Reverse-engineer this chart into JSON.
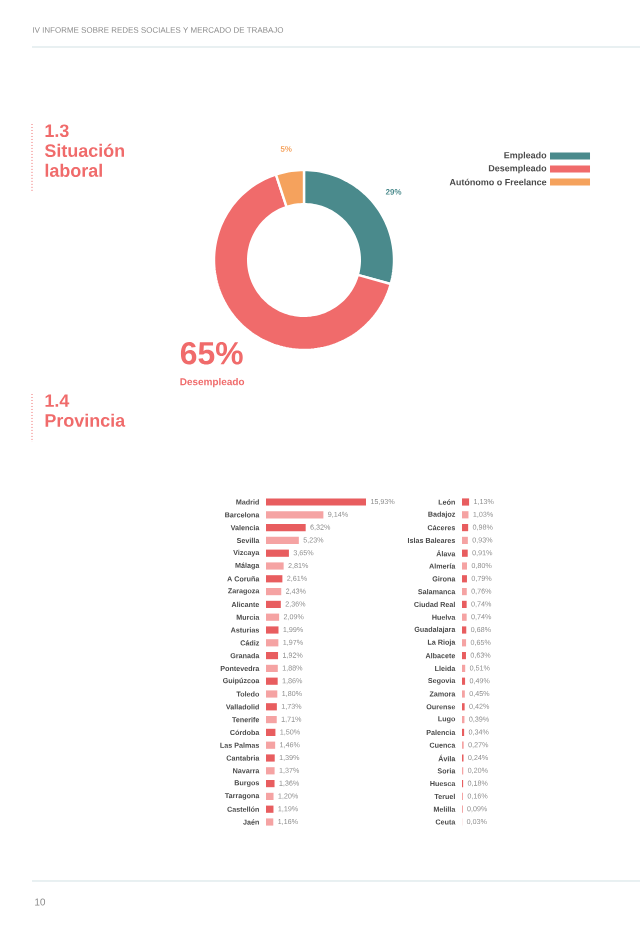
{
  "chart_data": [
    {
      "type": "donut",
      "title": "1.3 Situación laboral",
      "annotations": [
        "IV INFORME SOBRE REDES SOCIALES Y MERCADO DE TRABAJO",
        "10"
      ],
      "categories": [
        "Empleado",
        "Desempleado",
        "Autónomo o Freelance"
      ],
      "values": [
        29,
        65,
        5
      ],
      "colors": [
        "#4a8a8c",
        "#f06b6b",
        "#f5a25d"
      ],
      "value_labels": [
        "29%",
        "65%",
        "5%"
      ],
      "legend": "top right"
    },
    {
      "type": "bar",
      "orientation": "horizontal",
      "title": "1.4 Provincia",
      "categories": [
        "Madrid",
        "Barcelona",
        "Valencia",
        "Sevilla",
        "Vizcaya",
        "Málaga",
        "A Coruña",
        "Zaragoza",
        "Alicante",
        "Murcia",
        "Asturias",
        "Cádiz",
        "Granada",
        "Pontevedra",
        "Guipúzcoa",
        "Toledo",
        "Valladolid",
        "Tenerife",
        "Córdoba",
        "Las Palmas",
        "Cantabria",
        "Navarra",
        "Burgos",
        "Tarragona",
        "Castellón",
        "Jaén"
      ],
      "values": [
        15.93,
        9.14,
        6.32,
        5.23,
        3.65,
        2.81,
        2.61,
        2.43,
        2.36,
        2.09,
        1.99,
        1.97,
        1.92,
        1.88,
        1.86,
        1.8,
        1.73,
        1.71,
        1.5,
        1.46,
        1.39,
        1.37,
        1.36,
        1.2,
        1.19,
        1.16
      ],
      "value_labels": [
        "15,93%",
        "9,14%",
        "6,32%",
        "5,23%",
        "3,65%",
        "2,81%",
        "2,61%",
        "2,43%",
        "2,36%",
        "2,09%",
        "1,99%",
        "1,97%",
        "1,92%",
        "1,88%",
        "1,86%",
        "1,80%",
        "1,73%",
        "1,71%",
        "1,50%",
        "1,46%",
        "1,39%",
        "1,37%",
        "1,36%",
        "1,20%",
        "1,19%",
        "1,16%"
      ],
      "colors": [
        "#e85d5f",
        "#f5a3a3",
        "#e85d5f",
        "#f5a3a3",
        "#e85d5f",
        "#f5a3a3",
        "#e85d5f",
        "#f5a3a3",
        "#e85d5f",
        "#f5a3a3",
        "#e85d5f",
        "#f5a3a3",
        "#e85d5f",
        "#f5a3a3",
        "#e85d5f",
        "#f5a3a3",
        "#e85d5f",
        "#f5a3a3",
        "#e85d5f",
        "#f5a3a3",
        "#e85d5f",
        "#f5a3a3",
        "#e85d5f",
        "#f5a3a3",
        "#e85d5f",
        "#f5a3a3"
      ]
    },
    {
      "type": "bar",
      "orientation": "horizontal",
      "categories": [
        "León",
        "Badajoz",
        "Cáceres",
        "Islas Baleares",
        "Álava",
        "Almería",
        "Girona",
        "Salamanca",
        "Ciudad Real",
        "Huelva",
        "Guadalajara",
        "La Rioja",
        "Albacete",
        "Lleida",
        "Segovia",
        "Zamora",
        "Ourense",
        "Lugo",
        "Palencia",
        "Cuenca",
        "Ávila",
        "Soria",
        "Huesca",
        "Teruel",
        "Melilla",
        "Ceuta"
      ],
      "values": [
        1.13,
        1.03,
        0.98,
        0.93,
        0.91,
        0.8,
        0.79,
        0.76,
        0.74,
        0.74,
        0.68,
        0.65,
        0.63,
        0.51,
        0.49,
        0.45,
        0.42,
        0.39,
        0.34,
        0.27,
        0.24,
        0.2,
        0.18,
        0.16,
        0.09,
        0.03
      ],
      "value_labels": [
        "1,13%",
        "1,03%",
        "0,98%",
        "0,93%",
        "0,91%",
        "0,80%",
        "0,79%",
        "0,76%",
        "0,74%",
        "0,74%",
        "0,68%",
        "0,65%",
        "0,63%",
        "0,51%",
        "0,49%",
        "0,45%",
        "0,42%",
        "0,39%",
        "0,34%",
        "0,27%",
        "0,24%",
        "0,20%",
        "0,18%",
        "0,16%",
        "0,09%",
        "0,03%"
      ],
      "colors": [
        "#e85d5f",
        "#f5a3a3",
        "#e85d5f",
        "#f5a3a3",
        "#e85d5f",
        "#f5a3a3",
        "#e85d5f",
        "#f5a3a3",
        "#e85d5f",
        "#f5a3a3",
        "#e85d5f",
        "#f5a3a3",
        "#e85d5f",
        "#f5a3a3",
        "#e85d5f",
        "#f5a3a3",
        "#e85d5f",
        "#f5a3a3",
        "#e85d5f",
        "#f5a3a3",
        "#e85d5f",
        "#f5a3a3",
        "#e85d5f",
        "#f5a3a3",
        "#e85d5f",
        "#f5a3a3"
      ]
    }
  ]
}
